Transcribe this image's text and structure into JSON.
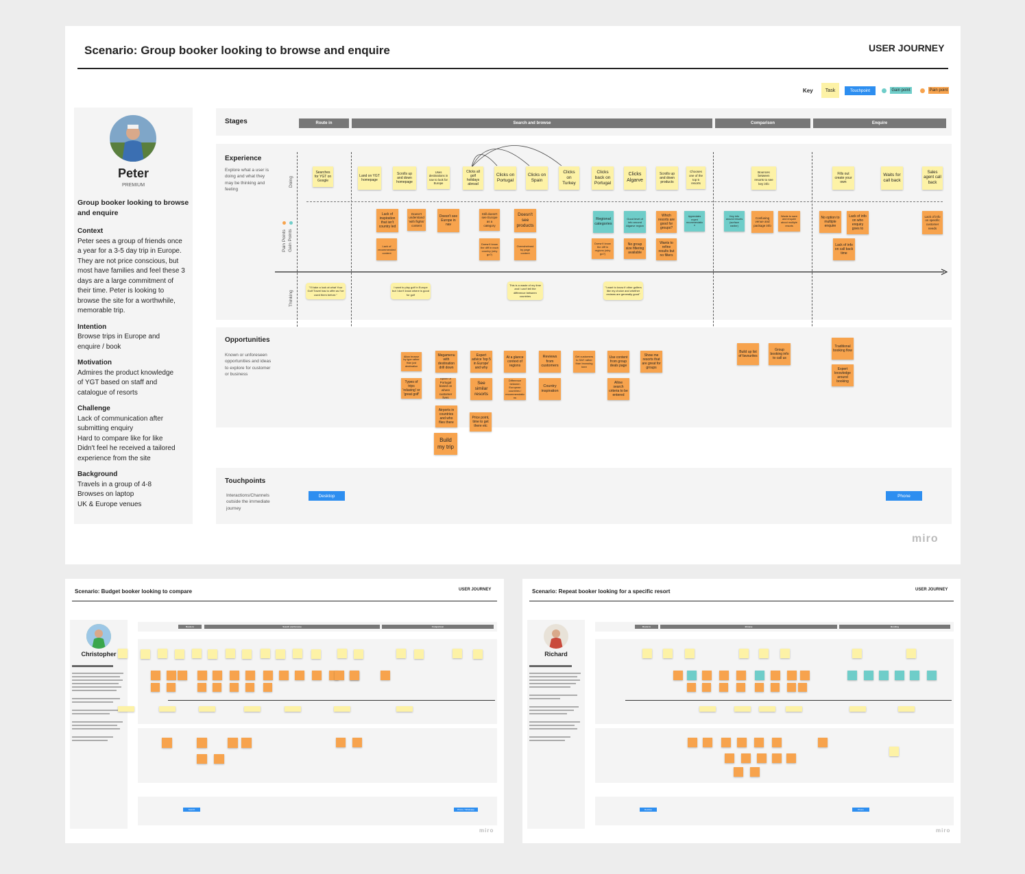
{
  "main": {
    "title": "Scenario: Group booker looking to browse and enquire",
    "tag": "USER JOURNEY",
    "key": {
      "label": "Key",
      "task": "Task",
      "touchpoint": "Touchpoint",
      "gain": "Gain point",
      "pain": "Pain point"
    },
    "persona": {
      "name": "Peter",
      "tier": "PREMIUM",
      "headline": "Group booker looking to browse and enquire",
      "sections": [
        {
          "title": "Context",
          "lines": [
            "Peter sees a group of friends once",
            "a year for a 3-5 day trip in Europe.",
            "They are not price conscious, but",
            "most have families and feel these 3",
            "days are a large commitment of",
            "their time. Peter is looking to",
            "browse the site for a worthwhile,",
            "memorable trip."
          ]
        },
        {
          "title": "Intention",
          "lines": [
            "Browse trips in Europe and",
            "enquire / book"
          ]
        },
        {
          "title": "Motivation",
          "lines": [
            "Admires the product knowledge",
            "of YGT based on staff and",
            "catalogue of resorts"
          ]
        },
        {
          "title": "Challenge",
          "lines": [
            "Lack of communication after",
            "submitting enquiry",
            "Hard to compare like for like",
            "Didn't feel he received a tailored",
            "experience from the site"
          ]
        },
        {
          "title": "Background",
          "lines": [
            "Travels in a group of 4-8",
            "Browses on laptop",
            "UK & Europe venues"
          ]
        }
      ]
    },
    "stages_label": "Stages",
    "stages": [
      "Route in",
      "Search and browse",
      "Comparison",
      "Enquire"
    ],
    "experience": {
      "title": "Experience",
      "desc": [
        "Explore what a user is",
        "doing and what they",
        "may be thinking and",
        "feeling"
      ],
      "doing": "Doing",
      "points": "Pain Points",
      "gain": "Gain Points",
      "thinking": "Thinking"
    },
    "doing_notes": [
      "Searches for YGT on Google",
      "Land on YGT homepage",
      "Scrolls up and down homepage",
      "Uses destinations in nav to look for Europe",
      "Clicks all golf holidays abroad",
      "Clicks on Portugal",
      "Clicks on Spain",
      "Clicks on Turkey",
      "Clicks back on Portugal",
      "Clicks Algarve",
      "Scrolls up and down products",
      "Chooses one of the top 5 resorts",
      "Bounces between resorts to see key info",
      "Fills out create your own",
      "Waits for call back",
      "Sales agent call back"
    ],
    "point_notes": [
      "Lack of inspiration that isn't country led",
      "Doesn't understand 'with flights' content",
      "Doesn't see Europe in nav",
      "Still doesn't see Europe as a category",
      "Doesn't see products",
      "Regional categories",
      "Good level of info around Algarve region",
      "Which resorts are good for groups?",
      "Appreciates expert recommendation",
      "Key info around resorts (surface earlier)",
      "Confusing venue and package info",
      "Wants to save and enquire about multiple resorts",
      "No option to multiple enquire",
      "Lack of info on who enquiry goes to",
      "Lack of info on specific customer needs",
      "Lack of recommended content",
      "Doesn't know the diff in each country (why go?)",
      "Overwhelmed by page content",
      "Doesn't know the diff in regions (why go?)",
      "No group size filtering available",
      "Wants to refine results but no filters",
      "Lack of info on call back time"
    ],
    "thinking_notes": [
      "\"I'll take a look at what Your Golf Travel has to offer as I've used them before.\"",
      "I want to play golf in Europe but I don't know where is good for golf",
      "This is a waste of my time and I can't tell the difference between countries",
      "\"I want to know if other golfers like my choice and whether reviews are generally good\""
    ],
    "opportunities": {
      "title": "Opportunities",
      "desc": [
        "Known or unforeseen",
        "opportunities and ideas",
        "to explore for customer",
        "or business"
      ]
    },
    "opp_notes": [
      "Allow browse by type rather than just destination",
      "Megamenu with destination drill down",
      "Expert advice 'top 5 in Europe' and why",
      "At a glance context of regions",
      "Reviews from customers",
      "Get customers to SAY rather than browsing here",
      "Use content from group deals page",
      "Show me resorts that are great for groups",
      "Build up list of favourites",
      "Group booking info to call us",
      "Traditional booking flow",
      "Types of trips 'relaxing' or 'great golf'",
      "Spain or Portugal based on where customer lives",
      "See similar resorts",
      "Difference between European countries / recommendations",
      "Country inspiration",
      "Allow search criteria to be entered",
      "Expert knowledge around booking",
      "Airports in countries and who flies there",
      "Price point, time to get there etc",
      "Build my trip"
    ],
    "touchpoints": {
      "title": "Touchpoints",
      "desc": [
        "Interactions/Channels",
        "outside the immediate",
        "journey"
      ],
      "desktop": "Desktop",
      "phone": "Phone"
    },
    "brand": "miro"
  },
  "budget": {
    "title": "Scenario: Budget booker looking to compare",
    "tag": "USER JOURNEY",
    "name": "Christopher",
    "stages": [
      "Route in",
      "Search and browse",
      "Comparison"
    ],
    "touch_a": "Search",
    "touch_b": "Phone / Whatsapp",
    "brand": "miro"
  },
  "repeat": {
    "title": "Scenario: Repeat booker looking for a specific resort",
    "tag": "USER JOURNEY",
    "name": "Richard",
    "stages": [
      "Route in",
      "Browse",
      "Booking"
    ],
    "touch_a": "Desktop",
    "touch_b": "Phone",
    "brand": "miro"
  },
  "colors": {
    "sticky_yellow": "#fdf2a6",
    "sticky_orange": "#f7a34d",
    "sticky_teal": "#6fcdc9",
    "touchpoint_blue": "#2d8ef0",
    "stage_grey": "#777777"
  }
}
